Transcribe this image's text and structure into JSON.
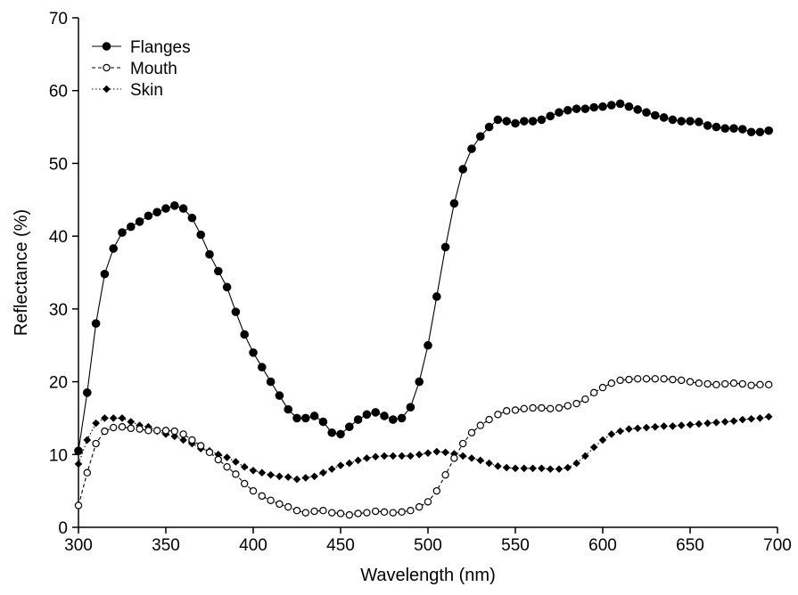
{
  "chart_data": {
    "type": "line",
    "title": "",
    "xlabel": "Wavelength (nm)",
    "ylabel": "Reflectance (%)",
    "xlim": [
      300,
      700
    ],
    "ylim": [
      0,
      70
    ],
    "xticks": [
      300,
      350,
      400,
      450,
      500,
      550,
      600,
      650,
      700
    ],
    "yticks": [
      0,
      10,
      20,
      30,
      40,
      50,
      60,
      70
    ],
    "grid": false,
    "legend": "top-left",
    "x": [
      300,
      305,
      310,
      315,
      320,
      325,
      330,
      335,
      340,
      345,
      350,
      355,
      360,
      365,
      370,
      375,
      380,
      385,
      390,
      395,
      400,
      405,
      410,
      415,
      420,
      425,
      430,
      435,
      440,
      445,
      450,
      455,
      460,
      465,
      470,
      475,
      480,
      485,
      490,
      495,
      500,
      505,
      510,
      515,
      520,
      525,
      530,
      535,
      540,
      545,
      550,
      555,
      560,
      565,
      570,
      575,
      580,
      585,
      590,
      595,
      600,
      605,
      610,
      615,
      620,
      625,
      630,
      635,
      640,
      645,
      650,
      655,
      660,
      665,
      670,
      675,
      680,
      685,
      690,
      695
    ],
    "series": [
      {
        "name": "Flanges",
        "marker": "filled-circle",
        "line": "solid",
        "values": [
          10.5,
          18.5,
          28,
          34.8,
          38.3,
          40.5,
          41.3,
          42,
          42.8,
          43.3,
          43.8,
          44.2,
          43.8,
          42.5,
          40.2,
          37.5,
          35.2,
          33,
          29.6,
          26.5,
          24,
          22,
          20,
          18.1,
          16.2,
          15,
          15,
          15.3,
          14.5,
          13,
          12.8,
          13.8,
          14.8,
          15.5,
          15.8,
          15.3,
          14.8,
          15,
          16.5,
          20,
          25,
          31.7,
          38.5,
          44.5,
          49.2,
          52,
          53.7,
          55,
          56,
          55.8,
          55.5,
          55.8,
          55.8,
          56,
          56.5,
          57,
          57.3,
          57.5,
          57.5,
          57.7,
          57.8,
          58,
          58.2,
          57.8,
          57.4,
          57,
          56.6,
          56.3,
          56,
          55.8,
          55.8,
          55.7,
          55.2,
          55,
          54.8,
          54.8,
          54.7,
          54.3,
          54.3,
          54.5
        ]
      },
      {
        "name": "Mouth",
        "marker": "open-circle",
        "line": "dashed",
        "values": [
          3,
          7.5,
          11.5,
          13.2,
          13.7,
          13.8,
          13.6,
          13.5,
          13.3,
          13.3,
          13.3,
          13.2,
          12.8,
          12,
          11.2,
          10.3,
          9.3,
          8.3,
          7.3,
          6,
          5,
          4.3,
          3.7,
          3.2,
          2.8,
          2.3,
          2,
          2.2,
          2.3,
          2,
          1.9,
          1.7,
          1.9,
          2,
          2.2,
          2.1,
          2,
          2.1,
          2.3,
          2.8,
          3.5,
          5,
          7.2,
          9.5,
          11.5,
          13,
          14,
          14.8,
          15.5,
          16,
          16.1,
          16.3,
          16.4,
          16.4,
          16.3,
          16.4,
          16.7,
          17,
          17.6,
          18.5,
          19.2,
          19.8,
          20.2,
          20.3,
          20.4,
          20.4,
          20.4,
          20.4,
          20.3,
          20.2,
          20,
          19.8,
          19.7,
          19.6,
          19.7,
          19.8,
          19.7,
          19.5,
          19.6,
          19.6
        ]
      },
      {
        "name": "Skin",
        "marker": "filled-diamond",
        "line": "dotted",
        "values": [
          8.7,
          12,
          14.3,
          15,
          15,
          15,
          14.5,
          14,
          13.8,
          13.2,
          12.8,
          12.5,
          12,
          11.5,
          10.8,
          10.5,
          10,
          9.6,
          9,
          8.3,
          7.8,
          7.5,
          7.2,
          7,
          6.9,
          6.6,
          6.8,
          7,
          7.5,
          8,
          8.5,
          8.8,
          9.2,
          9.5,
          9.7,
          9.8,
          9.8,
          9.8,
          9.8,
          10,
          10.2,
          10.4,
          10.3,
          10.1,
          9.8,
          9.5,
          9.2,
          8.8,
          8.4,
          8.2,
          8.1,
          8.1,
          8.1,
          8.1,
          8,
          8,
          8.2,
          8.8,
          9.8,
          11,
          12,
          12.8,
          13.2,
          13.5,
          13.6,
          13.7,
          13.8,
          13.9,
          13.9,
          14,
          14.1,
          14.2,
          14.3,
          14.4,
          14.5,
          14.6,
          14.8,
          14.9,
          15,
          15.2
        ]
      }
    ]
  }
}
